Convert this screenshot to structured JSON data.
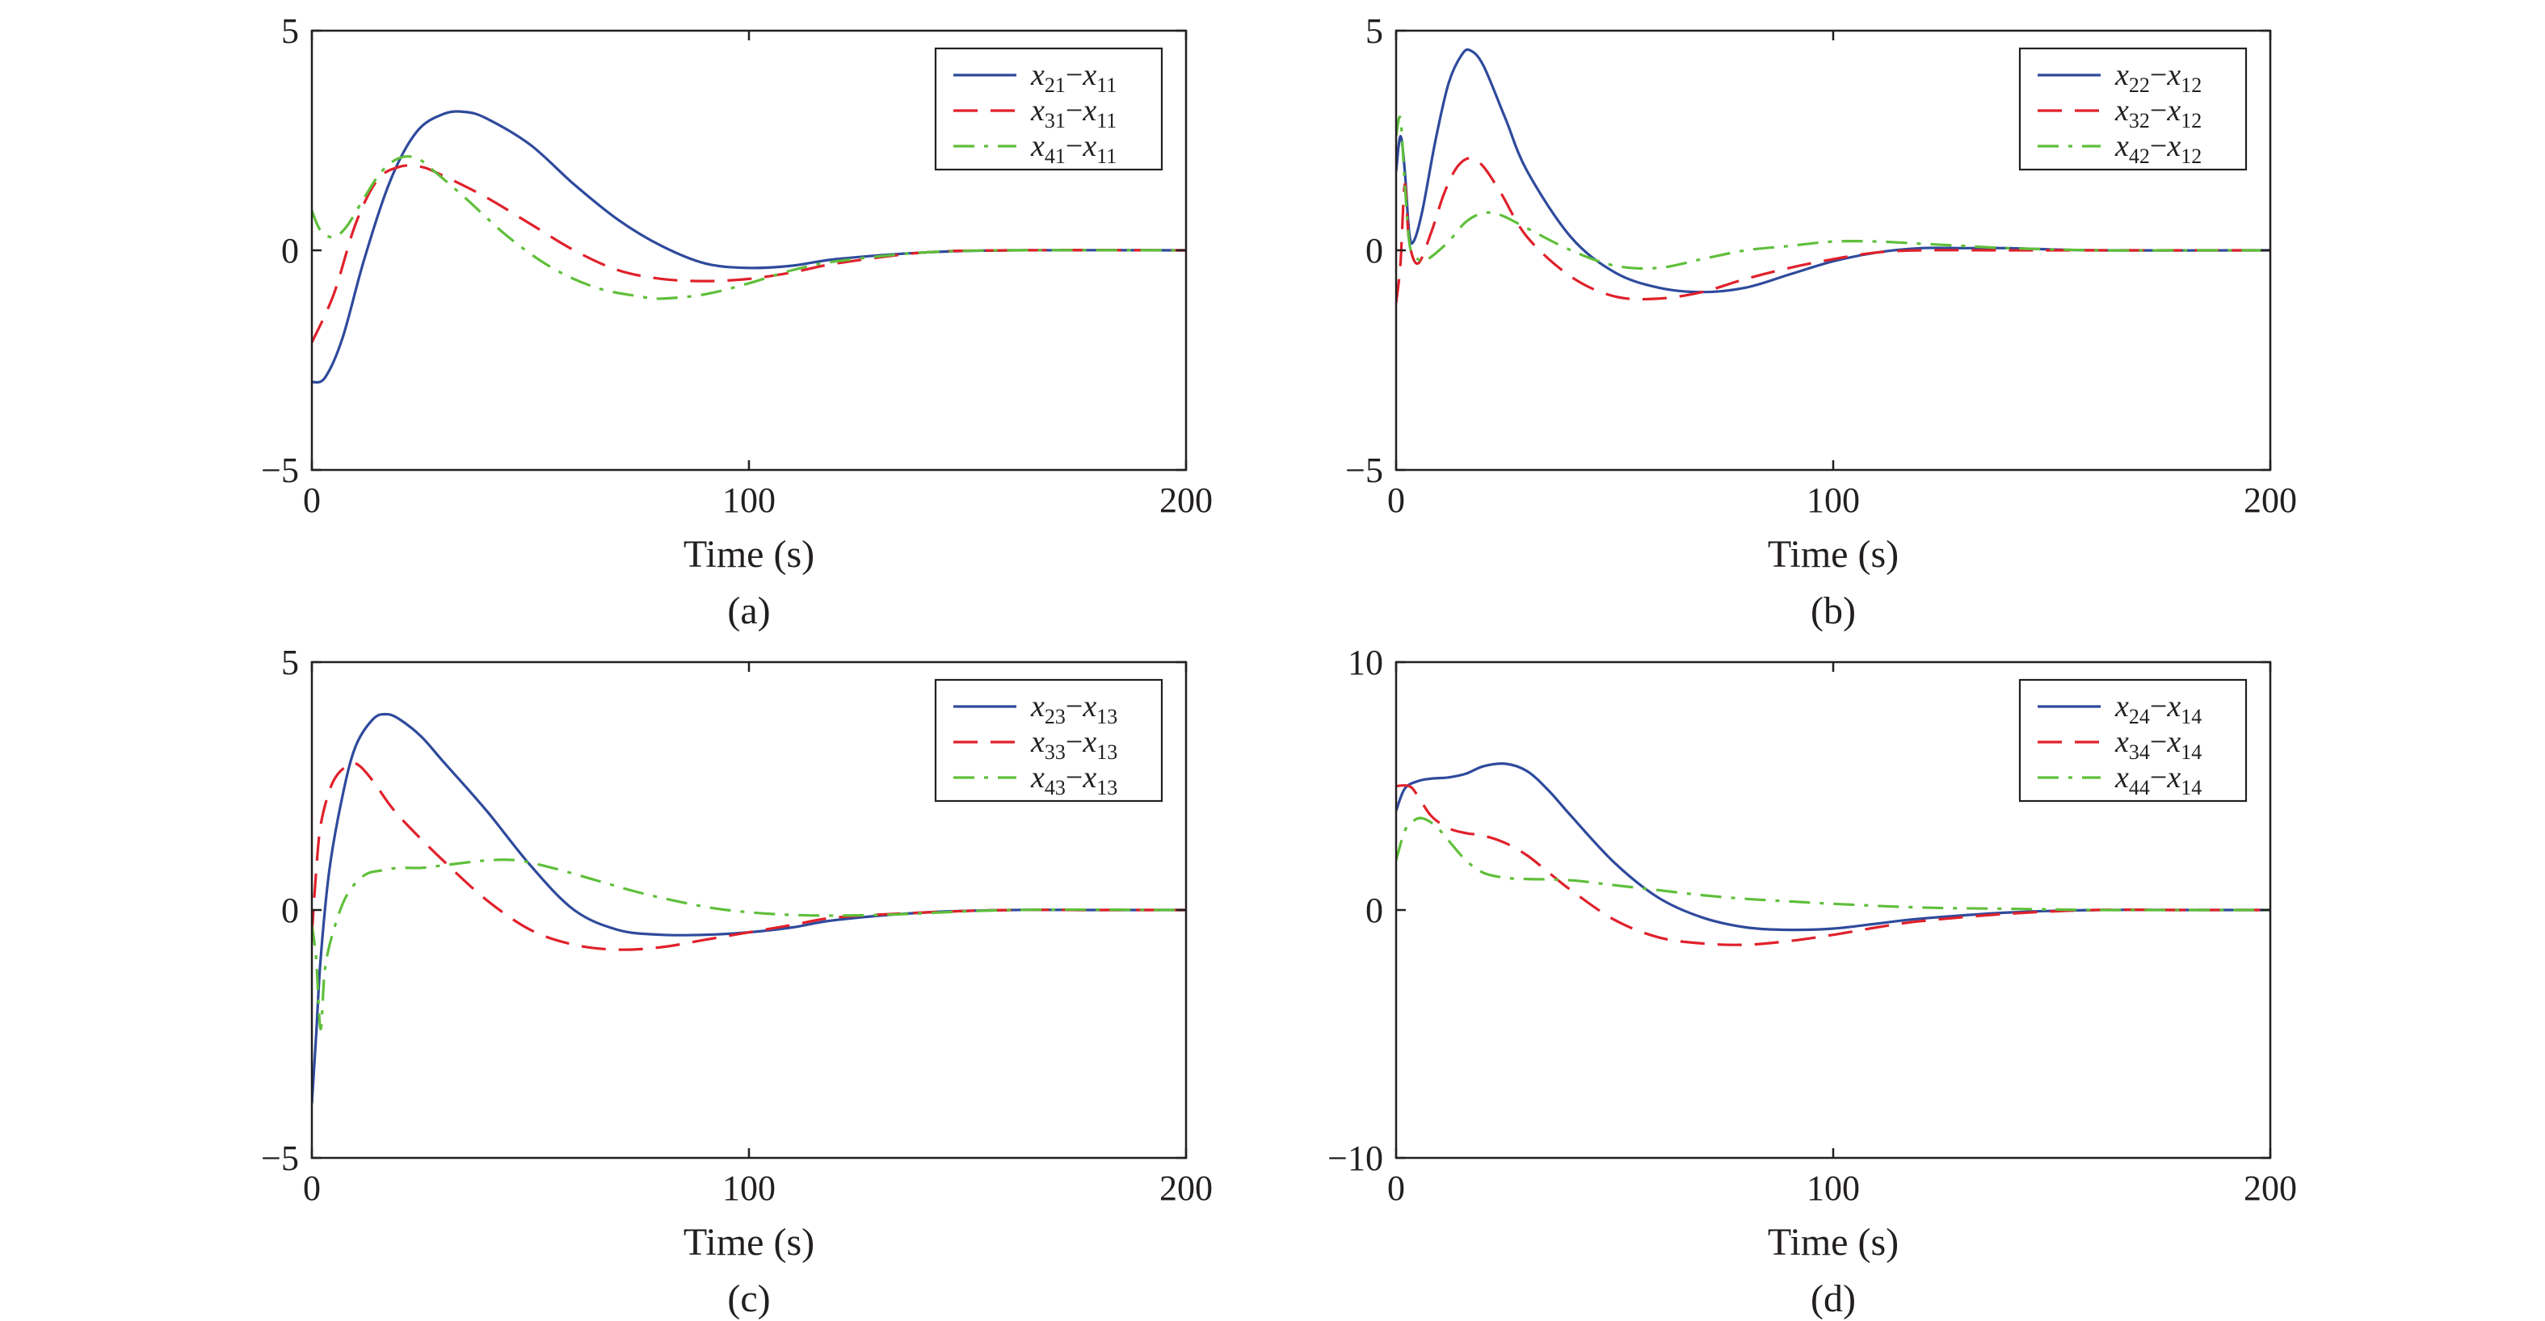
{
  "colors": {
    "series1": "#2e4a9c",
    "series2": "#e0202a",
    "series3": "#5fbf3a",
    "axes": "#231f20"
  },
  "chart_data": [
    {
      "panel": "(a)",
      "type": "line",
      "xlabel": "Time (s)",
      "ylabel": "",
      "xlim": [
        0,
        200
      ],
      "ylim": [
        -5,
        5
      ],
      "xticks": [
        "0",
        "100",
        "200"
      ],
      "yticks": [
        "5",
        "0",
        "−5"
      ],
      "legend_position": "top-right",
      "series": [
        {
          "name": "x21−x11",
          "label_parts": [
            "x",
            "21",
            "x",
            "11"
          ],
          "style": "solid",
          "color": "#2e4a9c",
          "x": [
            0,
            3,
            7,
            12,
            18,
            24,
            30,
            35,
            40,
            50,
            60,
            70,
            80,
            90,
            100,
            110,
            120,
            140,
            160,
            200
          ],
          "y": [
            -3.0,
            -2.9,
            -2.0,
            -0.2,
            1.6,
            2.7,
            3.1,
            3.15,
            3.0,
            2.4,
            1.5,
            0.7,
            0.1,
            -0.3,
            -0.4,
            -0.35,
            -0.2,
            -0.05,
            0.0,
            0.0
          ]
        },
        {
          "name": "x31−x11",
          "label_parts": [
            "x",
            "31",
            "x",
            "11"
          ],
          "style": "dashed",
          "color": "#e0202a",
          "x": [
            0,
            5,
            10,
            15,
            20,
            25,
            30,
            40,
            50,
            60,
            70,
            80,
            90,
            100,
            110,
            120,
            140,
            160,
            200
          ],
          "y": [
            -2.1,
            -1.0,
            0.6,
            1.6,
            1.9,
            1.9,
            1.7,
            1.2,
            0.6,
            0.0,
            -0.45,
            -0.65,
            -0.7,
            -0.65,
            -0.5,
            -0.3,
            -0.05,
            0.0,
            0.0
          ]
        },
        {
          "name": "x41−x11",
          "label_parts": [
            "x",
            "41",
            "x",
            "11"
          ],
          "style": "dashdot",
          "color": "#5fbf3a",
          "x": [
            0,
            2,
            5,
            8,
            12,
            16,
            20,
            24,
            28,
            35,
            45,
            55,
            65,
            75,
            80,
            90,
            100,
            110,
            120,
            140,
            160,
            200
          ],
          "y": [
            0.9,
            0.45,
            0.3,
            0.55,
            1.2,
            1.8,
            2.1,
            2.1,
            1.8,
            1.2,
            0.3,
            -0.4,
            -0.85,
            -1.05,
            -1.1,
            -1.0,
            -0.75,
            -0.45,
            -0.25,
            -0.05,
            0.0,
            0.0
          ]
        }
      ]
    },
    {
      "panel": "(b)",
      "type": "line",
      "xlabel": "Time (s)",
      "ylabel": "",
      "xlim": [
        0,
        200
      ],
      "ylim": [
        -5,
        5
      ],
      "xticks": [
        "0",
        "100",
        "200"
      ],
      "yticks": [
        "5",
        "0",
        "−5"
      ],
      "legend_position": "top-right",
      "series": [
        {
          "name": "x22−x12",
          "label_parts": [
            "x",
            "22",
            "x",
            "12"
          ],
          "style": "solid",
          "color": "#2e4a9c",
          "x": [
            0,
            1,
            2,
            3,
            4,
            6,
            9,
            12,
            15,
            17,
            20,
            25,
            30,
            40,
            50,
            60,
            70,
            80,
            90,
            100,
            110,
            120,
            130,
            140,
            160,
            200
          ],
          "y": [
            1.8,
            2.6,
            1.8,
            0.4,
            0.2,
            0.9,
            2.5,
            3.8,
            4.45,
            4.55,
            4.2,
            3.0,
            1.8,
            0.3,
            -0.5,
            -0.85,
            -0.95,
            -0.85,
            -0.55,
            -0.25,
            -0.05,
            0.05,
            0.05,
            0.05,
            0.0,
            0.0
          ]
        },
        {
          "name": "x32−x12",
          "label_parts": [
            "x",
            "32",
            "x",
            "12"
          ],
          "style": "dashed",
          "color": "#e0202a",
          "x": [
            0,
            1,
            2,
            3,
            5,
            8,
            11,
            14,
            17,
            20,
            24,
            30,
            40,
            50,
            60,
            70,
            80,
            90,
            100,
            110,
            120,
            140,
            160,
            200
          ],
          "y": [
            -1.2,
            -0.3,
            1.5,
            0.2,
            -0.3,
            0.4,
            1.3,
            1.9,
            2.1,
            1.9,
            1.3,
            0.3,
            -0.6,
            -1.05,
            -1.1,
            -0.95,
            -0.65,
            -0.4,
            -0.2,
            -0.05,
            0.0,
            0.0,
            0.0,
            0.0
          ]
        },
        {
          "name": "x42−x12",
          "label_parts": [
            "x",
            "42",
            "x",
            "12"
          ],
          "style": "dashdot",
          "color": "#5fbf3a",
          "x": [
            0,
            1,
            2,
            3,
            4,
            6,
            8,
            12,
            16,
            20,
            24,
            30,
            40,
            50,
            60,
            70,
            80,
            90,
            100,
            110,
            120,
            130,
            140,
            160,
            180,
            200
          ],
          "y": [
            2.6,
            3.0,
            1.5,
            0.2,
            -0.1,
            -0.25,
            -0.15,
            0.2,
            0.65,
            0.85,
            0.8,
            0.5,
            0.0,
            -0.35,
            -0.4,
            -0.2,
            0.0,
            0.1,
            0.2,
            0.2,
            0.15,
            0.1,
            0.05,
            0.0,
            0.0,
            0.0
          ]
        }
      ]
    },
    {
      "panel": "(c)",
      "type": "line",
      "xlabel": "Time (s)",
      "ylabel": "",
      "xlim": [
        0,
        200
      ],
      "ylim": [
        -5,
        5
      ],
      "xticks": [
        "0",
        "100",
        "200"
      ],
      "yticks": [
        "5",
        "0",
        "−5"
      ],
      "legend_position": "top-right",
      "series": [
        {
          "name": "x23−x13",
          "label_parts": [
            "x",
            "23",
            "x",
            "13"
          ],
          "style": "solid",
          "color": "#2e4a9c",
          "x": [
            0,
            1,
            2,
            4,
            7,
            10,
            14,
            17,
            20,
            25,
            30,
            40,
            50,
            60,
            70,
            80,
            90,
            100,
            110,
            120,
            140,
            160,
            180,
            200
          ],
          "y": [
            -3.9,
            -2.5,
            -1.0,
            0.8,
            2.3,
            3.3,
            3.85,
            3.95,
            3.85,
            3.5,
            3.0,
            2.0,
            0.9,
            0.0,
            -0.4,
            -0.5,
            -0.5,
            -0.45,
            -0.35,
            -0.2,
            -0.05,
            0.0,
            0.0,
            0.0
          ]
        },
        {
          "name": "x33−x13",
          "label_parts": [
            "x",
            "33",
            "x",
            "13"
          ],
          "style": "dashed",
          "color": "#e0202a",
          "x": [
            0,
            1,
            2,
            4,
            6,
            9,
            11,
            14,
            18,
            22,
            30,
            40,
            50,
            60,
            70,
            80,
            90,
            100,
            110,
            120,
            140,
            160,
            180,
            200
          ],
          "y": [
            -0.5,
            0.8,
            1.7,
            2.4,
            2.75,
            2.95,
            2.9,
            2.6,
            2.1,
            1.7,
            1.0,
            0.2,
            -0.4,
            -0.7,
            -0.8,
            -0.75,
            -0.6,
            -0.45,
            -0.3,
            -0.15,
            -0.05,
            0.0,
            0.0,
            0.0
          ]
        },
        {
          "name": "x43−x13",
          "label_parts": [
            "x",
            "43",
            "x",
            "13"
          ],
          "style": "dashdot",
          "color": "#5fbf3a",
          "x": [
            0,
            1,
            2,
            3,
            5,
            8,
            12,
            16,
            20,
            25,
            30,
            40,
            47,
            55,
            65,
            75,
            85,
            95,
            110,
            130,
            160,
            200
          ],
          "y": [
            -0.3,
            -1.0,
            -2.4,
            -1.2,
            -0.4,
            0.3,
            0.7,
            0.8,
            0.85,
            0.85,
            0.9,
            1.0,
            1.0,
            0.85,
            0.6,
            0.35,
            0.15,
            0.0,
            -0.1,
            -0.1,
            0.0,
            0.0
          ]
        }
      ]
    },
    {
      "panel": "(d)",
      "type": "line",
      "xlabel": "Time (s)",
      "ylabel": "",
      "xlim": [
        0,
        200
      ],
      "ylim": [
        -10,
        10
      ],
      "xticks": [
        "0",
        "100",
        "200"
      ],
      "yticks": [
        "10",
        "0",
        "−10"
      ],
      "legend_position": "top-right",
      "series": [
        {
          "name": "x24−x14",
          "label_parts": [
            "x",
            "24",
            "x",
            "14"
          ],
          "style": "solid",
          "color": "#2e4a9c",
          "x": [
            0,
            2,
            5,
            8,
            12,
            16,
            20,
            25,
            30,
            35,
            40,
            50,
            60,
            70,
            80,
            90,
            100,
            110,
            120,
            140,
            160,
            180,
            200
          ],
          "y": [
            4.0,
            4.9,
            5.2,
            5.3,
            5.35,
            5.5,
            5.8,
            5.9,
            5.6,
            4.8,
            3.8,
            1.9,
            0.5,
            -0.3,
            -0.7,
            -0.8,
            -0.75,
            -0.55,
            -0.35,
            -0.1,
            0.0,
            0.0,
            0.0
          ]
        },
        {
          "name": "x34−x14",
          "label_parts": [
            "x",
            "34",
            "x",
            "14"
          ],
          "style": "dashed",
          "color": "#e0202a",
          "x": [
            0,
            3,
            5,
            8,
            12,
            16,
            20,
            25,
            30,
            35,
            40,
            50,
            60,
            70,
            80,
            90,
            100,
            110,
            120,
            140,
            160,
            180,
            200
          ],
          "y": [
            5.0,
            5.0,
            4.6,
            3.8,
            3.3,
            3.1,
            3.0,
            2.7,
            2.2,
            1.5,
            0.8,
            -0.4,
            -1.1,
            -1.35,
            -1.4,
            -1.25,
            -1.0,
            -0.7,
            -0.45,
            -0.15,
            0.0,
            0.0,
            0.0
          ]
        },
        {
          "name": "x44−x14",
          "label_parts": [
            "x",
            "44",
            "x",
            "14"
          ],
          "style": "dashdot",
          "color": "#5fbf3a",
          "x": [
            0,
            2,
            4,
            6,
            9,
            12,
            16,
            20,
            25,
            30,
            40,
            50,
            60,
            70,
            80,
            90,
            100,
            120,
            140,
            160,
            180,
            200
          ],
          "y": [
            2.0,
            3.2,
            3.6,
            3.7,
            3.4,
            2.8,
            2.0,
            1.5,
            1.3,
            1.25,
            1.2,
            1.0,
            0.8,
            0.6,
            0.45,
            0.35,
            0.25,
            0.1,
            0.05,
            0.0,
            0.0,
            0.0
          ]
        }
      ]
    }
  ]
}
